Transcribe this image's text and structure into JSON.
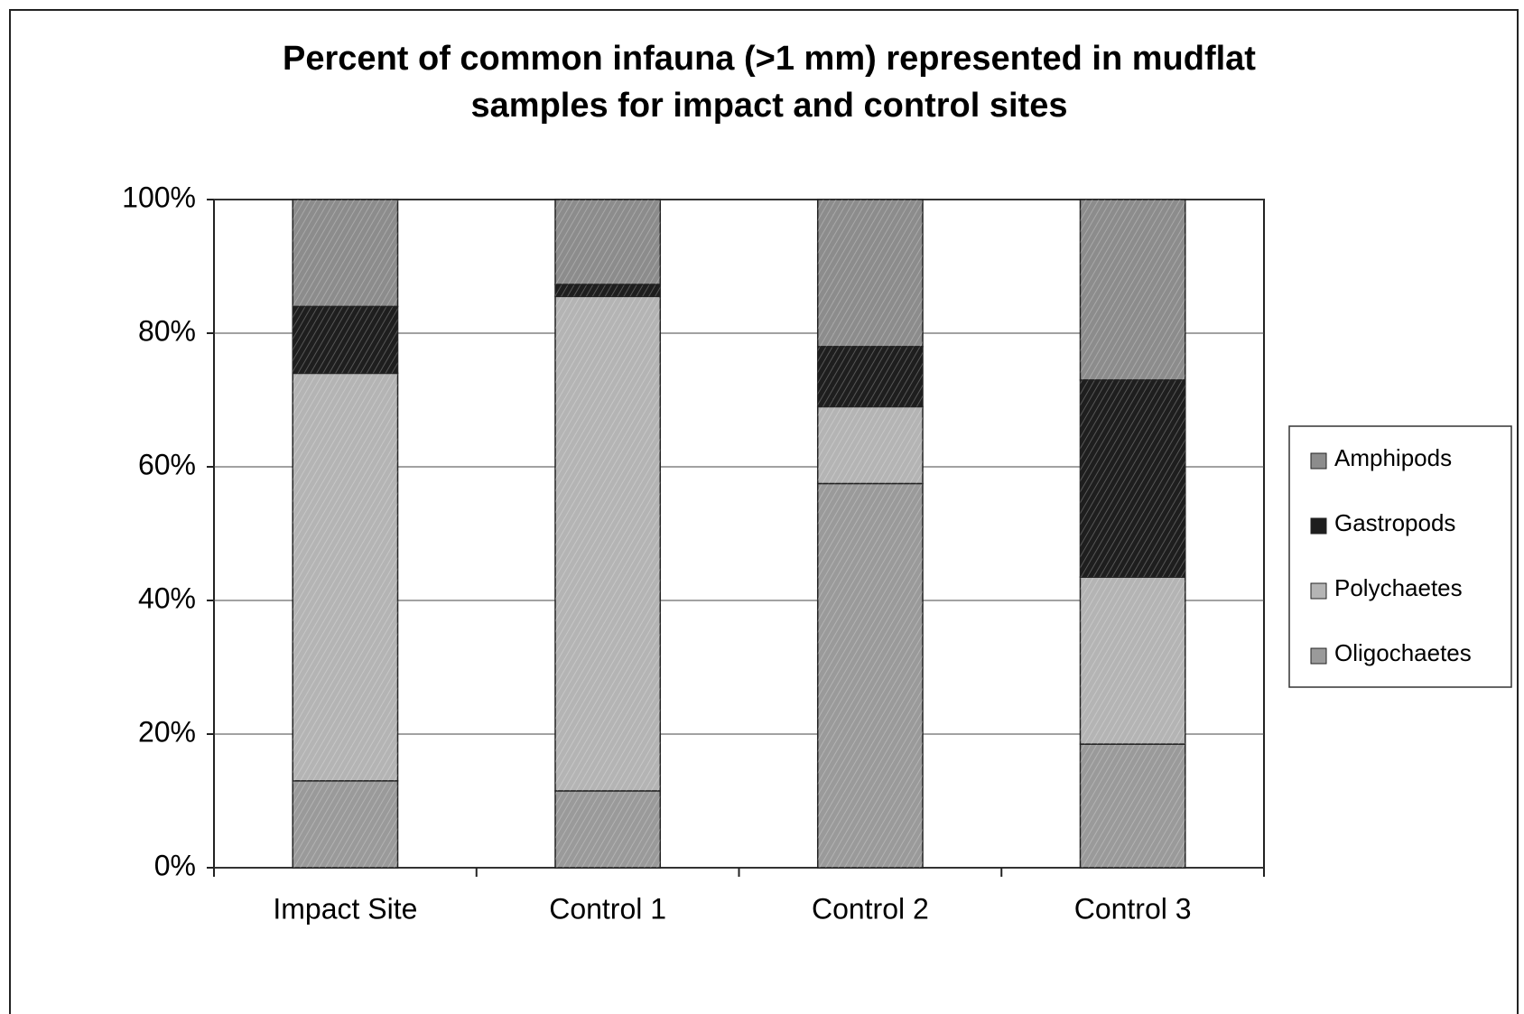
{
  "chart_data": {
    "type": "stacked_bar",
    "title": [
      "Percent of common infauna (>1 mm) represented in mudflat",
      "samples for impact and control sites"
    ],
    "categories": [
      "Impact Site",
      "Control 1",
      "Control 2",
      "Control 3"
    ],
    "series": [
      {
        "name": "Oligochaetes",
        "color": "#9a9a9a",
        "values": [
          13,
          11.5,
          57.5,
          18.5
        ]
      },
      {
        "name": "Polychaetes",
        "color": "#b4b4b4",
        "values": [
          61,
          74,
          11.5,
          25
        ]
      },
      {
        "name": "Gastropods",
        "color": "#1e1e1e",
        "values": [
          10,
          1.8,
          9,
          29.5
        ]
      },
      {
        "name": "Amphipods",
        "color": "#8c8c8c",
        "values": [
          16,
          12.7,
          22,
          27
        ]
      }
    ],
    "ylim": [
      0,
      100
    ],
    "yticks": [
      {
        "value": 0,
        "label": "0%"
      },
      {
        "value": 20,
        "label": "20%"
      },
      {
        "value": 40,
        "label": "40%"
      },
      {
        "value": 60,
        "label": "60%"
      },
      {
        "value": 80,
        "label": "80%"
      },
      {
        "value": 100,
        "label": "100%"
      }
    ],
    "grid": true,
    "legend": "right"
  }
}
